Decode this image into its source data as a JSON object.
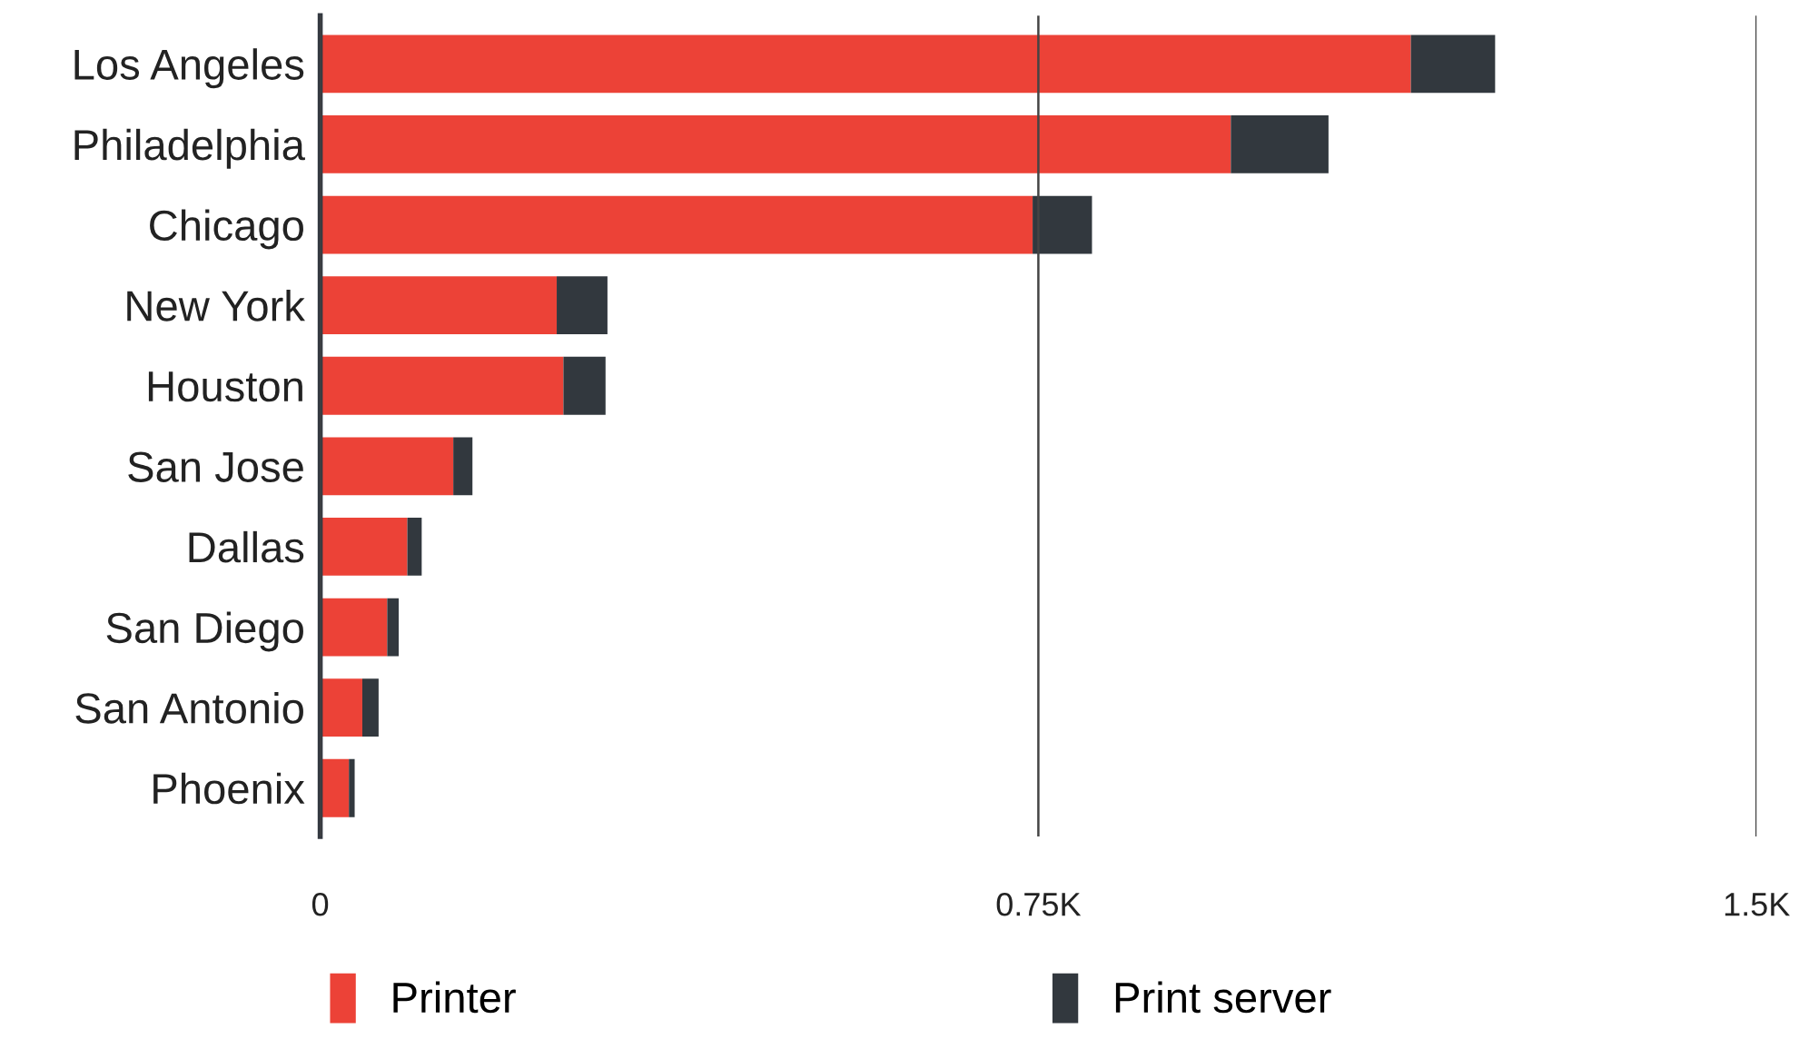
{
  "chart_data": {
    "type": "bar",
    "orientation": "horizontal",
    "stacked": true,
    "categories": [
      "Los Angeles",
      "Philadelphia",
      "Chicago",
      "New York",
      "Houston",
      "San Jose",
      "Dallas",
      "San Diego",
      "San Antonio",
      "Phoenix"
    ],
    "series": [
      {
        "name": "Printer",
        "color": "#ec4237",
        "values": [
          1139,
          951,
          744,
          247,
          254,
          139,
          91,
          70,
          44,
          30
        ]
      },
      {
        "name": "Print server",
        "color": "#32383e",
        "values": [
          88,
          102,
          62,
          53,
          44,
          20,
          15,
          12,
          17,
          6
        ]
      }
    ],
    "xlim": [
      0,
      1500
    ],
    "xticks": [
      0,
      {
        "value": 750,
        "label": "0.75K"
      },
      {
        "value": 1500,
        "label": "1.5K"
      }
    ],
    "grid": "x",
    "legend": "bottom"
  }
}
